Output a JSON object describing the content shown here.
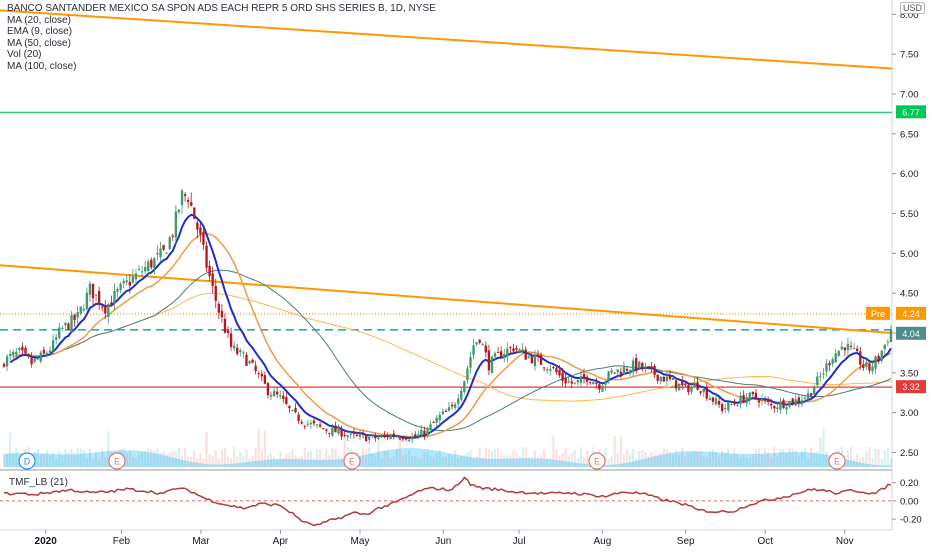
{
  "chart_data": {
    "type": "candlestick",
    "title": "BANCO SANTANDER MEXICO SA SPON ADS EACH REPR 5 ORD SHS SERIES B, 1D, NYSE",
    "currency": "USD",
    "legend": [
      "MA (20, close)",
      "EMA (9, close)",
      "MA (50, close)",
      "Vol (20)",
      "MA (100, close)"
    ],
    "y_ticks": [
      "8.00",
      "7.50",
      "7.00",
      "6.50",
      "6.00",
      "5.50",
      "5.00",
      "4.50",
      "4.00",
      "3.50",
      "3.00",
      "2.50"
    ],
    "x_ticks": [
      "2020",
      "Feb",
      "Mar",
      "Apr",
      "May",
      "Jun",
      "Jul",
      "Aug",
      "Sep",
      "Oct",
      "Nov"
    ],
    "ylim": [
      2.28,
      8.18
    ],
    "price_labels": [
      {
        "text": "6.77",
        "value": 6.77,
        "color": "#00c853"
      },
      {
        "text": "Pre",
        "value": 4.24,
        "color": "#ff9800"
      },
      {
        "text": "4.24",
        "value": 4.24,
        "color": "#ff9800"
      },
      {
        "text": "4.04",
        "value": 4.04,
        "color": "#4d8d8d"
      },
      {
        "text": "3.32",
        "value": 3.32,
        "color": "#e53935"
      }
    ],
    "horizontal_levels": [
      {
        "value": 6.77,
        "color": "#00c853",
        "style": "solid"
      },
      {
        "value": 4.04,
        "color": "#26a9c9",
        "style": "dashed"
      },
      {
        "value": 3.32,
        "color": "#e53935",
        "style": "solid"
      },
      {
        "value": 4.24,
        "color": "#ff9800",
        "style": "dotted"
      }
    ],
    "trendlines": [
      {
        "from": [
          0,
          8.05
        ],
        "to": [
          1.0,
          7.32
        ],
        "color": "#ff9800"
      },
      {
        "from": [
          0,
          4.85
        ],
        "to": [
          1.0,
          4.0
        ],
        "color": "#ff9800"
      }
    ],
    "earnings_markers": [
      "D",
      "E",
      "E",
      "E",
      "E"
    ],
    "indicator": {
      "name": "TMF_LB (21)",
      "y_ticks": [
        "0.20",
        "0.00",
        "-0.20"
      ],
      "ylim": [
        -0.32,
        0.34
      ]
    },
    "price_anchors": [
      [
        0,
        3.65
      ],
      [
        2,
        3.7
      ],
      [
        5,
        3.75
      ],
      [
        9,
        3.62
      ],
      [
        13,
        3.72
      ],
      [
        16,
        3.85
      ],
      [
        18,
        4.0
      ],
      [
        19,
        4.05
      ],
      [
        24,
        4.2
      ],
      [
        28,
        4.55
      ],
      [
        33,
        4.32
      ],
      [
        38,
        4.55
      ],
      [
        43,
        4.72
      ],
      [
        48,
        4.88
      ],
      [
        52,
        5.0
      ],
      [
        55,
        5.27
      ],
      [
        58,
        5.72
      ],
      [
        60,
        5.72
      ],
      [
        62,
        5.45
      ],
      [
        64,
        5.18
      ],
      [
        66,
        4.85
      ],
      [
        68,
        4.55
      ],
      [
        70,
        4.28
      ],
      [
        72,
        4.05
      ],
      [
        74,
        3.82
      ],
      [
        76,
        3.75
      ],
      [
        78,
        3.7
      ],
      [
        80,
        3.62
      ],
      [
        83,
        3.45
      ],
      [
        86,
        3.28
      ],
      [
        90,
        3.18
      ],
      [
        94,
        2.98
      ],
      [
        98,
        2.88
      ],
      [
        102,
        2.82
      ],
      [
        106,
        2.78
      ],
      [
        110,
        2.75
      ],
      [
        113,
        2.7
      ],
      [
        118,
        2.69
      ],
      [
        122,
        2.68
      ],
      [
        126,
        2.72
      ],
      [
        130,
        2.71
      ],
      [
        134,
        2.69
      ],
      [
        138,
        2.78
      ],
      [
        142,
        2.95
      ],
      [
        146,
        3.05
      ],
      [
        150,
        3.42
      ],
      [
        153,
        3.85
      ],
      [
        155,
        3.95
      ],
      [
        158,
        3.6
      ],
      [
        162,
        3.75
      ],
      [
        166,
        3.82
      ],
      [
        170,
        3.72
      ],
      [
        174,
        3.65
      ],
      [
        178,
        3.58
      ],
      [
        182,
        3.42
      ],
      [
        186,
        3.35
      ],
      [
        190,
        3.45
      ],
      [
        194,
        3.35
      ],
      [
        198,
        3.5
      ],
      [
        202,
        3.55
      ],
      [
        206,
        3.6
      ],
      [
        210,
        3.52
      ],
      [
        214,
        3.45
      ],
      [
        218,
        3.38
      ],
      [
        222,
        3.3
      ],
      [
        226,
        3.35
      ],
      [
        230,
        3.2
      ],
      [
        234,
        3.05
      ],
      [
        238,
        3.12
      ],
      [
        242,
        3.2
      ],
      [
        246,
        3.18
      ],
      [
        250,
        3.08
      ],
      [
        254,
        3.12
      ],
      [
        258,
        3.15
      ],
      [
        262,
        3.22
      ],
      [
        266,
        3.45
      ],
      [
        270,
        3.72
      ],
      [
        274,
        3.85
      ],
      [
        278,
        3.7
      ],
      [
        280,
        3.58
      ],
      [
        282,
        3.55
      ],
      [
        285,
        3.7
      ],
      [
        287,
        3.85
      ],
      [
        289,
        4.04
      ]
    ],
    "tmf_anchors": [
      [
        0,
        0.08
      ],
      [
        6,
        0.08
      ],
      [
        10,
        0.07
      ],
      [
        16,
        0.1
      ],
      [
        22,
        0.12
      ],
      [
        28,
        0.09
      ],
      [
        34,
        0.1
      ],
      [
        40,
        0.13
      ],
      [
        46,
        0.11
      ],
      [
        52,
        0.08
      ],
      [
        56,
        0.14
      ],
      [
        60,
        0.12
      ],
      [
        66,
        0.02
      ],
      [
        72,
        -0.04
      ],
      [
        78,
        -0.08
      ],
      [
        84,
        -0.03
      ],
      [
        90,
        -0.05
      ],
      [
        94,
        -0.14
      ],
      [
        98,
        -0.24
      ],
      [
        102,
        -0.27
      ],
      [
        106,
        -0.22
      ],
      [
        110,
        -0.18
      ],
      [
        114,
        -0.13
      ],
      [
        118,
        -0.15
      ],
      [
        122,
        -0.08
      ],
      [
        126,
        -0.04
      ],
      [
        130,
        0.02
      ],
      [
        136,
        0.12
      ],
      [
        140,
        0.14
      ],
      [
        146,
        0.12
      ],
      [
        150,
        0.26
      ],
      [
        152,
        0.18
      ],
      [
        156,
        0.14
      ],
      [
        162,
        0.12
      ],
      [
        166,
        0.1
      ],
      [
        172,
        0.09
      ],
      [
        178,
        0.08
      ],
      [
        184,
        0.09
      ],
      [
        190,
        0.07
      ],
      [
        196,
        0.05
      ],
      [
        202,
        0.1
      ],
      [
        208,
        0.08
      ],
      [
        214,
        0.02
      ],
      [
        218,
        -0.01
      ],
      [
        222,
        -0.04
      ],
      [
        226,
        -0.1
      ],
      [
        232,
        -0.12
      ],
      [
        238,
        -0.11
      ],
      [
        242,
        -0.05
      ],
      [
        246,
        -0.01
      ],
      [
        252,
        0.03
      ],
      [
        256,
        0.06
      ],
      [
        260,
        0.1
      ],
      [
        264,
        0.13
      ],
      [
        268,
        0.11
      ],
      [
        272,
        0.08
      ],
      [
        276,
        0.12
      ],
      [
        280,
        0.1
      ],
      [
        284,
        0.08
      ],
      [
        289,
        0.19
      ]
    ]
  }
}
